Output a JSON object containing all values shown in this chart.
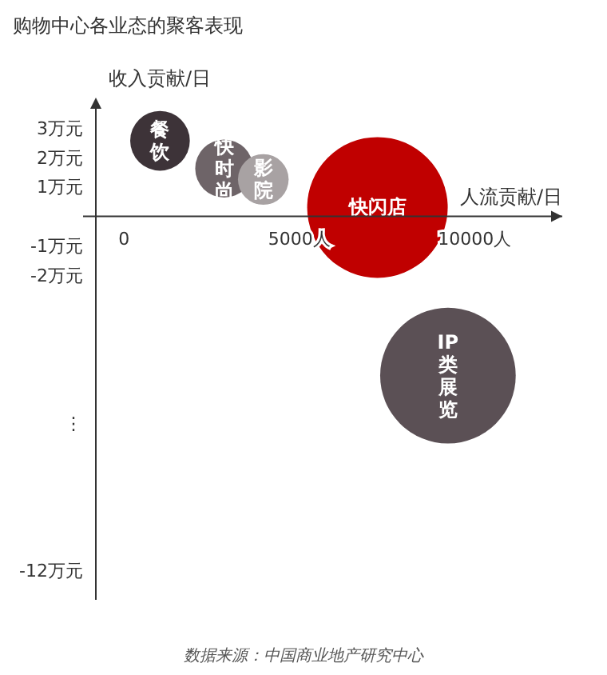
{
  "chart_data": {
    "type": "bubble",
    "title": "购物中心各业态的聚客表现",
    "xlabel": "人流贡献/日",
    "ylabel": "收入贡献/日",
    "series": [
      {
        "name": "餐饮",
        "color": "#3d3338",
        "x": [
          1030
        ],
        "values": [
          2.56
        ],
        "sizes": [
          0.18
        ]
      },
      {
        "name": "快时尚",
        "color": "#6e6468",
        "x": [
          2860
        ],
        "values": [
          1.62
        ],
        "sizes": [
          0.17
        ]
      },
      {
        "name": "影院",
        "color": "#a8a2a3",
        "x": [
          3975
        ],
        "values": [
          1.25
        ],
        "sizes": [
          0.13
        ]
      },
      {
        "name": "快闪店",
        "color": "#c00000",
        "x": [
          7230
        ],
        "values": [
          0.3
        ],
        "sizes": [
          1
        ]
      },
      {
        "name": "IP类展览",
        "color": "#5b5055",
        "x": [
          9240
        ],
        "values": [
          -5.4
        ],
        "sizes": [
          0.93
        ]
      }
    ],
    "xlim": [
      -800,
      12500
    ],
    "xticks": [
      0,
      {
        "value": 5000,
        "label": "5000人"
      },
      {
        "value": 10000,
        "label": "10000人"
      }
    ],
    "ylim": [
      -13,
      3.7
    ],
    "yticks": [
      {
        "value": -12,
        "label": "-12万元"
      },
      {
        "value": -2,
        "label": "-2万元"
      },
      {
        "value": -1,
        "label": "-1万元"
      },
      {
        "value": 1,
        "label": "1万元"
      },
      {
        "value": 2,
        "label": "2万元"
      },
      {
        "value": 3,
        "label": "3万元"
      }
    ],
    "annotations": [
      "⋮",
      "数据来源：中国商业地产研究中心"
    ]
  }
}
